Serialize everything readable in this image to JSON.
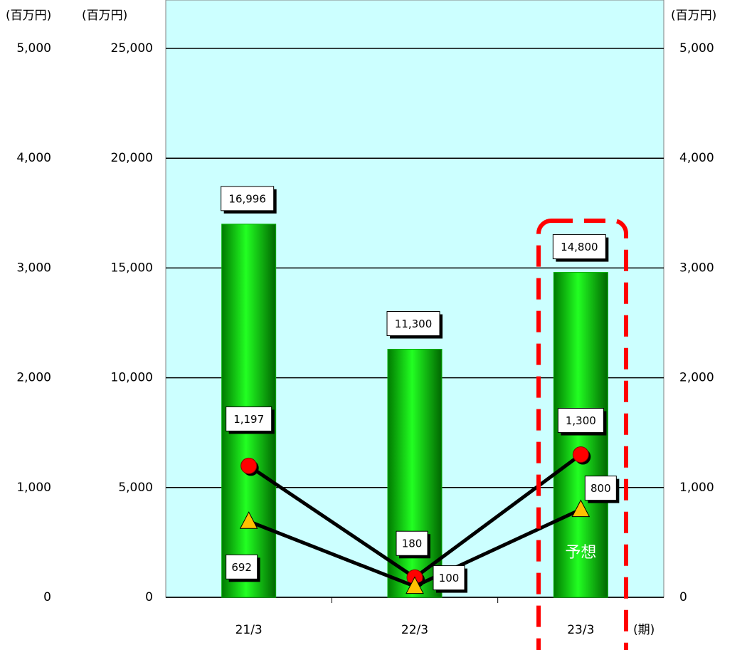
{
  "chart_data": {
    "type": "bar",
    "categories": [
      "21/3",
      "22/3",
      "23/3"
    ],
    "x_unit": "(期)",
    "y_label": "(百万円)",
    "y2_label": "(百万円)",
    "ylim": [
      0,
      25000
    ],
    "yticks": [
      0,
      {
        "value": 5000,
        "label": "5,000"
      },
      {
        "value": 10000,
        "label": "10,000"
      },
      {
        "value": 15000,
        "label": "15,000"
      },
      {
        "value": 20000,
        "label": "20,000"
      },
      {
        "value": 25000,
        "label": "25,000"
      }
    ],
    "y2lim": [
      0,
      5000
    ],
    "y2ticks": [
      0,
      {
        "value": 1000,
        "label": "1,000"
      },
      {
        "value": 2000,
        "label": "2,000"
      },
      {
        "value": 3000,
        "label": "3,000"
      },
      {
        "value": 4000,
        "label": "4,000"
      },
      {
        "value": 5000,
        "label": "5,000"
      }
    ],
    "grid": true,
    "annotation": "予想",
    "series": [
      {
        "type": "bar",
        "color": "#00b000",
        "values": [
          16996,
          11300,
          14800
        ],
        "value_labels": [
          "16,996",
          "11,300",
          "14,800"
        ]
      },
      {
        "type": "line",
        "axis": "y2",
        "marker": "circle",
        "color": "#ff0000",
        "values": [
          1197,
          180,
          1300
        ],
        "value_labels": [
          "1,197",
          "180",
          "1,300"
        ]
      },
      {
        "type": "line",
        "axis": "y2",
        "marker": "triangle",
        "color": "#ffc000",
        "values": [
          692,
          100,
          800
        ],
        "value_labels": [
          "692",
          "100",
          "800"
        ]
      }
    ]
  }
}
